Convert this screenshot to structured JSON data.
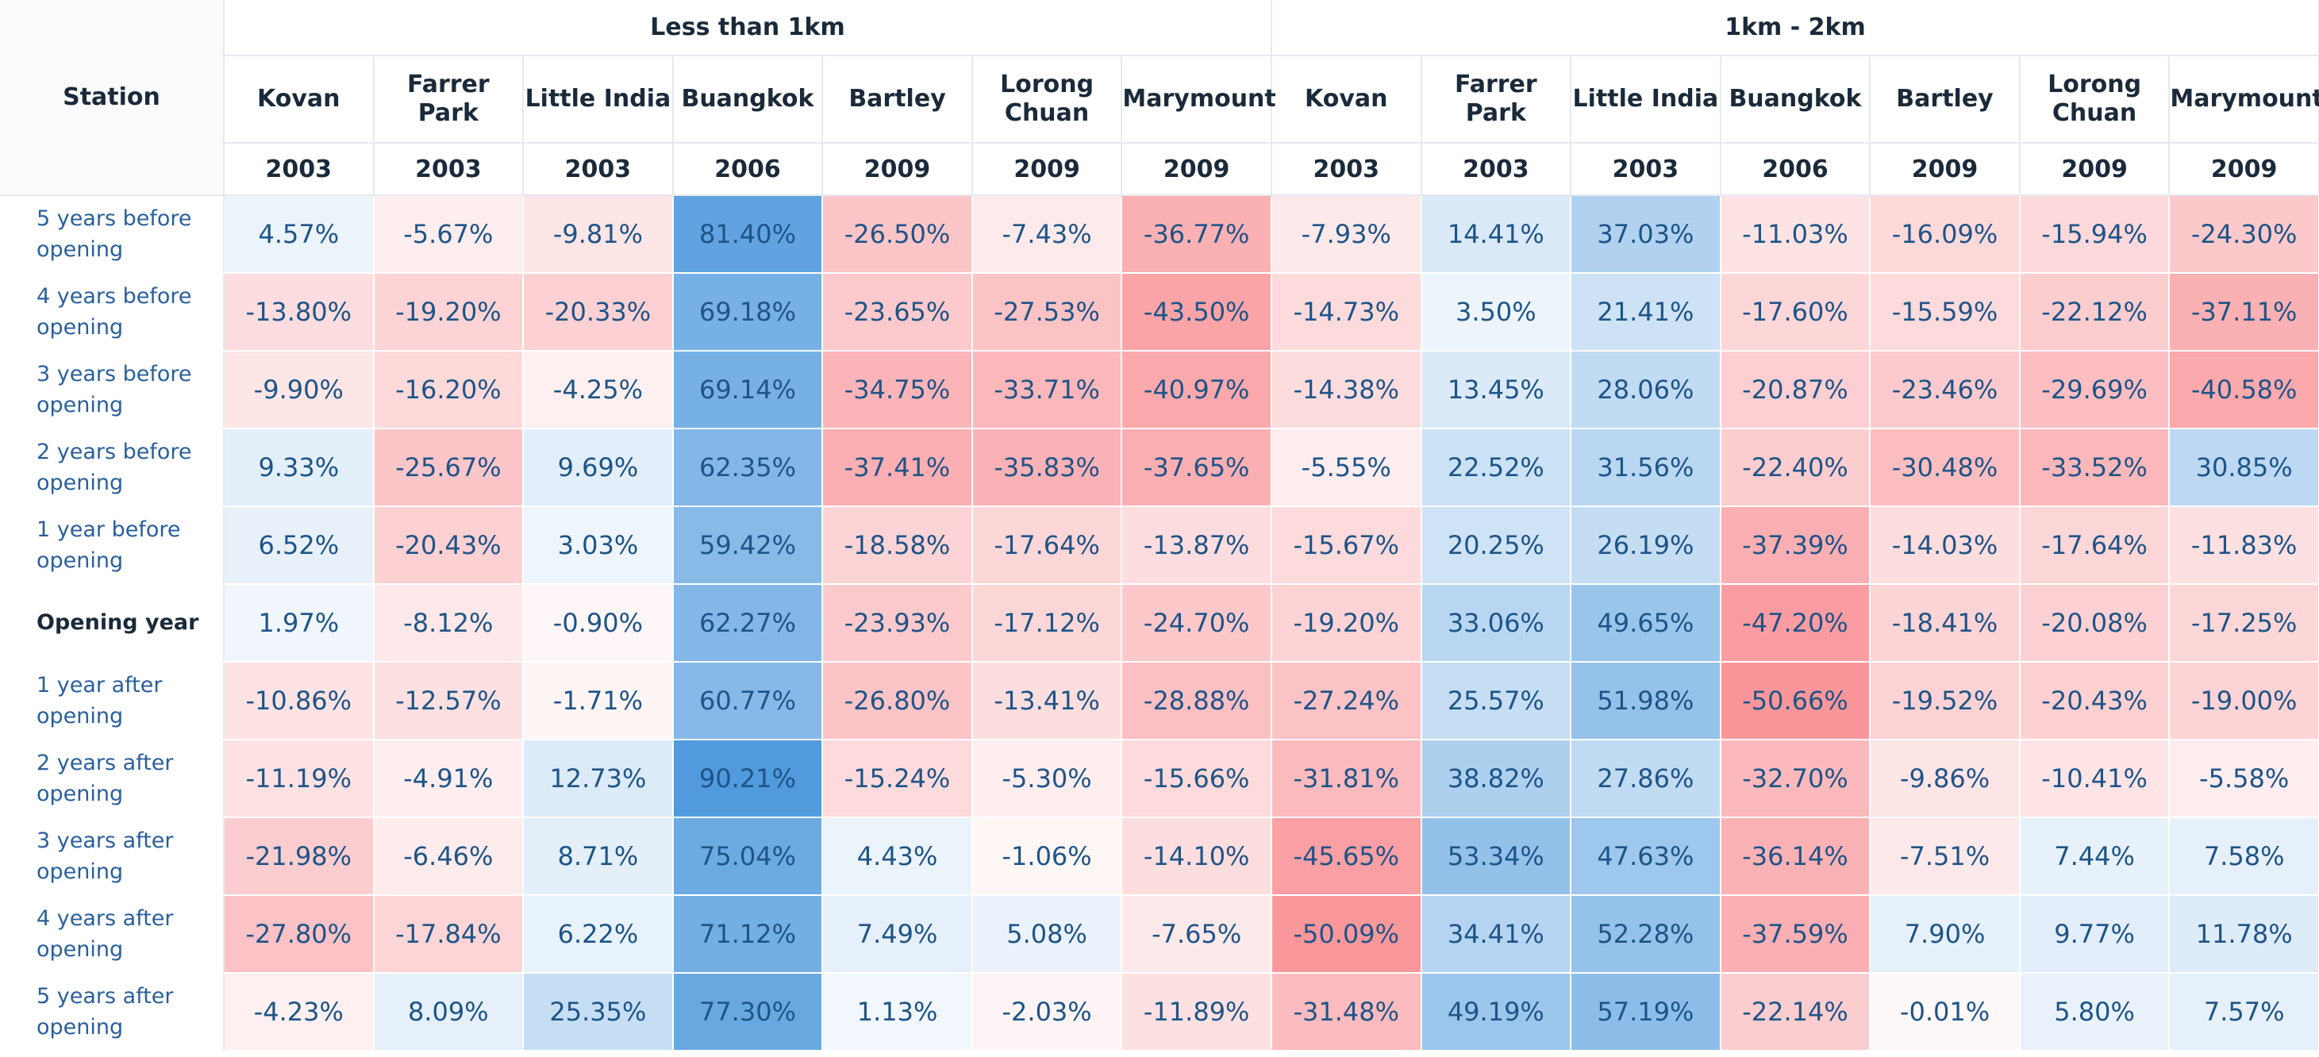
{
  "chart_data": {
    "type": "heatmap",
    "row_header": "Station",
    "groups": [
      "Less than 1km",
      "1km - 2km"
    ],
    "columns": [
      {
        "group": "Less than 1km",
        "station": "Kovan",
        "year": "2003"
      },
      {
        "group": "Less than 1km",
        "station": "Farrer Park",
        "year": "2003"
      },
      {
        "group": "Less than 1km",
        "station": "Little India",
        "year": "2003"
      },
      {
        "group": "Less than 1km",
        "station": "Buangkok",
        "year": "2006"
      },
      {
        "group": "Less than 1km",
        "station": "Bartley",
        "year": "2009"
      },
      {
        "group": "Less than 1km",
        "station": "Lorong Chuan",
        "year": "2009"
      },
      {
        "group": "Less than 1km",
        "station": "Marymount",
        "year": "2009"
      },
      {
        "group": "1km - 2km",
        "station": "Kovan",
        "year": "2003"
      },
      {
        "group": "1km - 2km",
        "station": "Farrer Park",
        "year": "2003"
      },
      {
        "group": "1km - 2km",
        "station": "Little India",
        "year": "2003"
      },
      {
        "group": "1km - 2km",
        "station": "Buangkok",
        "year": "2006"
      },
      {
        "group": "1km - 2km",
        "station": "Bartley",
        "year": "2009"
      },
      {
        "group": "1km - 2km",
        "station": "Lorong Chuan",
        "year": "2009"
      },
      {
        "group": "1km - 2km",
        "station": "Marymount",
        "year": "2009"
      }
    ],
    "rows": [
      {
        "label": "5 years before opening",
        "values": [
          4.57,
          -5.67,
          -9.81,
          81.4,
          -26.5,
          -7.43,
          -36.77,
          -7.93,
          14.41,
          37.03,
          -11.03,
          -16.09,
          -15.94,
          -24.3
        ]
      },
      {
        "label": "4 years before opening",
        "values": [
          -13.8,
          -19.2,
          -20.33,
          69.18,
          -23.65,
          -27.53,
          -43.5,
          -14.73,
          3.5,
          21.41,
          -17.6,
          -15.59,
          -22.12,
          -37.11
        ]
      },
      {
        "label": "3 years before opening",
        "values": [
          -9.9,
          -16.2,
          -4.25,
          69.14,
          -34.75,
          -33.71,
          -40.97,
          -14.38,
          13.45,
          28.06,
          -20.87,
          -23.46,
          -29.69,
          -40.58
        ]
      },
      {
        "label": "2 years before opening",
        "values": [
          9.33,
          -25.67,
          9.69,
          62.35,
          -37.41,
          -35.83,
          -37.65,
          -5.55,
          22.52,
          31.56,
          -22.4,
          -30.48,
          -33.52,
          30.85
        ]
      },
      {
        "label": "1 year before opening",
        "values": [
          6.52,
          -20.43,
          3.03,
          59.42,
          -18.58,
          -17.64,
          -13.87,
          -15.67,
          20.25,
          26.19,
          -37.39,
          -14.03,
          -17.64,
          -11.83
        ]
      },
      {
        "label": "Opening year",
        "values": [
          1.97,
          -8.12,
          -0.9,
          62.27,
          -23.93,
          -17.12,
          -24.7,
          -19.2,
          33.06,
          49.65,
          -47.2,
          -18.41,
          -20.08,
          -17.25
        ]
      },
      {
        "label": "1 year after opening",
        "values": [
          -10.86,
          -12.57,
          -1.71,
          60.77,
          -26.8,
          -13.41,
          -28.88,
          -27.24,
          25.57,
          51.98,
          -50.66,
          -19.52,
          -20.43,
          -19.0
        ]
      },
      {
        "label": "2 years after opening",
        "values": [
          -11.19,
          -4.91,
          12.73,
          90.21,
          -15.24,
          -5.3,
          -15.66,
          -31.81,
          38.82,
          27.86,
          -32.7,
          -9.86,
          -10.41,
          -5.58
        ]
      },
      {
        "label": "3 years after opening",
        "values": [
          -21.98,
          -6.46,
          8.71,
          75.04,
          4.43,
          -1.06,
          -14.1,
          -45.65,
          53.34,
          47.63,
          -36.14,
          -7.51,
          7.44,
          7.58
        ]
      },
      {
        "label": "4 years after opening",
        "values": [
          -27.8,
          -17.84,
          6.22,
          71.12,
          7.49,
          5.08,
          -7.65,
          -50.09,
          34.41,
          52.28,
          -37.59,
          7.9,
          9.77,
          11.78
        ]
      },
      {
        "label": "5 years after opening",
        "values": [
          -4.23,
          8.09,
          25.35,
          77.3,
          1.13,
          -2.03,
          -11.89,
          -31.48,
          49.19,
          57.19,
          -22.14,
          -0.01,
          5.8,
          7.57
        ]
      }
    ],
    "value_format": "percent_2dp",
    "colors": {
      "positive": "#3d8fd9",
      "negative": "#f98a8f",
      "text": "#1e5487",
      "label": "#2a5f9c"
    }
  }
}
